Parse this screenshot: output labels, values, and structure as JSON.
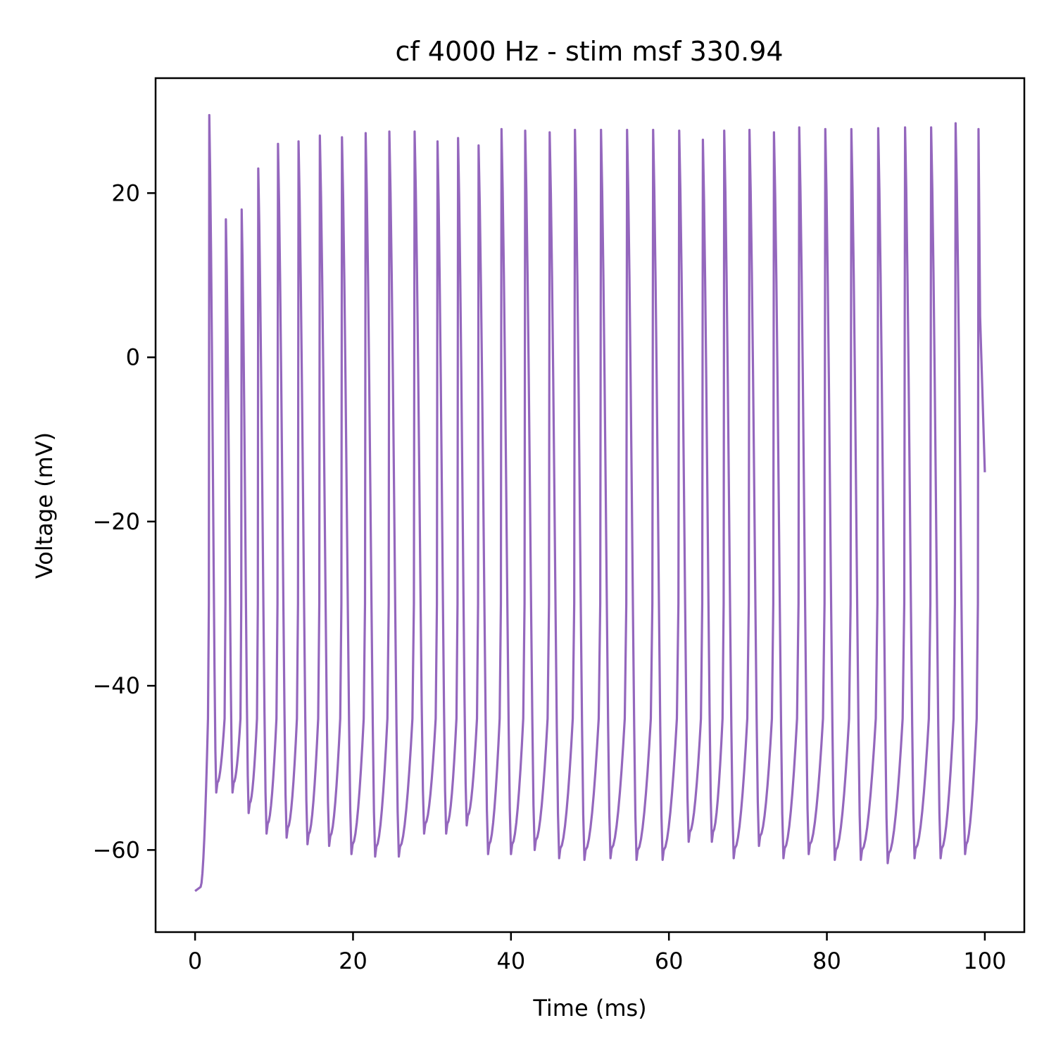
{
  "chart_data": {
    "type": "line",
    "title": "cf 4000 Hz - stim msf 330.94",
    "xlabel": "Time (ms)",
    "ylabel": "Voltage (mV)",
    "xlim": [
      -5,
      105
    ],
    "ylim": [
      -70,
      34
    ],
    "xticks": [
      0,
      20,
      40,
      60,
      80,
      100
    ],
    "yticks": [
      -60,
      -40,
      -20,
      0,
      20
    ],
    "xtick_labels": [
      "0",
      "20",
      "40",
      "60",
      "80",
      "100"
    ],
    "ytick_labels": [
      "−60",
      "−40",
      "−20",
      "0",
      "20"
    ],
    "grid": false,
    "legend": "none",
    "series": [
      {
        "color": "#9467bd",
        "initial_rest": [
          [
            0.0,
            -65.0
          ],
          [
            0.7,
            -64.5
          ]
        ],
        "end_point": [
          100.0,
          -14.0
        ],
        "spikes": [
          {
            "t": 1.8,
            "peak": 29.5,
            "trough": -53.0
          },
          {
            "t": 3.9,
            "peak": 16.8,
            "trough": -53.0
          },
          {
            "t": 5.9,
            "peak": 18.0,
            "trough": -55.5
          },
          {
            "t": 8.0,
            "peak": 23.0,
            "trough": -58.0
          },
          {
            "t": 10.5,
            "peak": 26.0,
            "trough": -58.5
          },
          {
            "t": 13.1,
            "peak": 26.3,
            "trough": -59.3
          },
          {
            "t": 15.8,
            "peak": 27.0,
            "trough": -59.5
          },
          {
            "t": 18.6,
            "peak": 26.8,
            "trough": -60.5
          },
          {
            "t": 21.6,
            "peak": 27.3,
            "trough": -60.8
          },
          {
            "t": 24.6,
            "peak": 27.5,
            "trough": -60.8
          },
          {
            "t": 27.8,
            "peak": 27.5,
            "trough": -58.0
          },
          {
            "t": 30.7,
            "peak": 26.3,
            "trough": -58.0
          },
          {
            "t": 33.3,
            "peak": 26.7,
            "trough": -57.0
          },
          {
            "t": 35.9,
            "peak": 25.8,
            "trough": -60.5
          },
          {
            "t": 38.8,
            "peak": 27.8,
            "trough": -60.5
          },
          {
            "t": 41.8,
            "peak": 27.6,
            "trough": -60.0
          },
          {
            "t": 44.9,
            "peak": 27.4,
            "trough": -61.0
          },
          {
            "t": 48.1,
            "peak": 27.7,
            "trough": -61.2
          },
          {
            "t": 51.4,
            "peak": 27.7,
            "trough": -61.0
          },
          {
            "t": 54.7,
            "peak": 27.7,
            "trough": -61.2
          },
          {
            "t": 58.0,
            "peak": 27.7,
            "trough": -61.2
          },
          {
            "t": 61.3,
            "peak": 27.6,
            "trough": -59.0
          },
          {
            "t": 64.3,
            "peak": 26.5,
            "trough": -59.0
          },
          {
            "t": 67.0,
            "peak": 27.6,
            "trough": -61.0
          },
          {
            "t": 70.2,
            "peak": 27.7,
            "trough": -59.5
          },
          {
            "t": 73.3,
            "peak": 27.4,
            "trough": -61.0
          },
          {
            "t": 76.5,
            "peak": 28.0,
            "trough": -60.5
          },
          {
            "t": 79.8,
            "peak": 27.8,
            "trough": -61.2
          },
          {
            "t": 83.1,
            "peak": 27.8,
            "trough": -61.2
          },
          {
            "t": 86.5,
            "peak": 27.9,
            "trough": -61.6
          },
          {
            "t": 89.9,
            "peak": 28.0,
            "trough": -61.0
          },
          {
            "t": 93.2,
            "peak": 28.0,
            "trough": -61.0
          },
          {
            "t": 96.3,
            "peak": 28.5,
            "trough": -60.5
          },
          {
            "t": 99.2,
            "peak": 27.8,
            "trough": null
          }
        ]
      }
    ]
  }
}
